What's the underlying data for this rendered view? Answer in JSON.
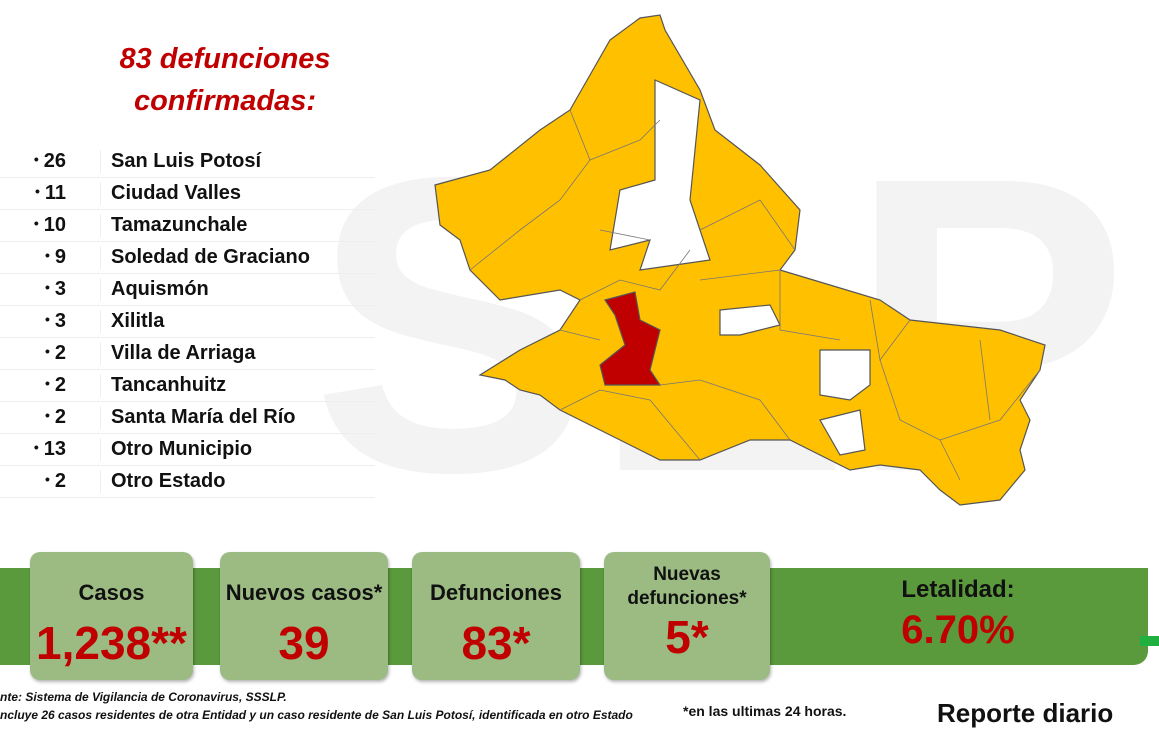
{
  "header": {
    "title": "83 defunciones confirmadas:"
  },
  "list": {
    "rows": [
      {
        "count": 26,
        "name": "San Luis Potosí"
      },
      {
        "count": 11,
        "name": "Ciudad Valles"
      },
      {
        "count": 10,
        "name": "Tamazunchale"
      },
      {
        "count": 9,
        "name": "Soledad de Graciano"
      },
      {
        "count": 3,
        "name": "Aquismón"
      },
      {
        "count": 3,
        "name": "Xilitla"
      },
      {
        "count": 2,
        "name": "Villa de Arriaga"
      },
      {
        "count": 2,
        "name": "Tancanhuitz"
      },
      {
        "count": 2,
        "name": "Santa María del Río"
      },
      {
        "count": 13,
        "name": "Otro Municipio"
      },
      {
        "count": 2,
        "name": "Otro Estado"
      }
    ]
  },
  "stats": [
    {
      "label": "Casos",
      "value": "1,238**"
    },
    {
      "label": "Nuevos casos*",
      "value": "39"
    },
    {
      "label": "Defunciones",
      "value": "83*"
    },
    {
      "label": "Nuevas defunciones*",
      "value": "5*"
    },
    {
      "label": "Letalidad:",
      "value": "6.70%"
    }
  ],
  "footer": {
    "source": "nte: Sistema de Vigilancia de Coronavirus, SSSLP.",
    "note": "ncluye 26 casos residentes de otra Entidad y un caso residente de San Luis Potosí, identificada en otro Estado",
    "hours_note": "*en las ultimas 24 horas.",
    "report": "Reporte diario"
  }
}
